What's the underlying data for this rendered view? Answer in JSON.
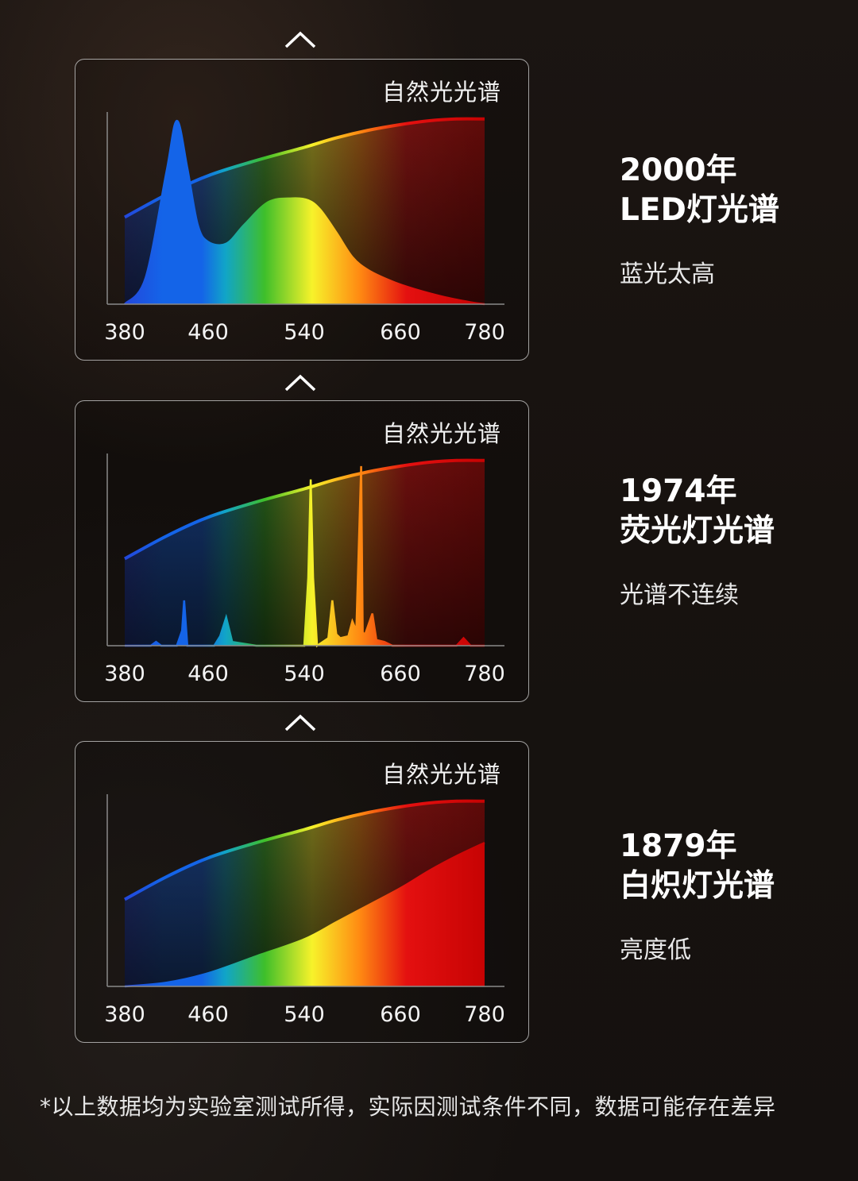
{
  "natural_light_label": "自然光光谱",
  "chart_data": [
    {
      "type": "area",
      "title": "2000年 LED灯光谱",
      "reference_series": "自然光光谱",
      "x_ticks": [
        380,
        460,
        540,
        660,
        780
      ],
      "series": [
        {
          "name": "自然光光谱",
          "x": [
            380,
            420,
            460,
            500,
            540,
            580,
            620,
            660,
            700,
            740,
            780
          ],
          "values": [
            0.46,
            0.58,
            0.68,
            0.76,
            0.83,
            0.88,
            0.92,
            0.95,
            0.97,
            0.98,
            0.98
          ]
        },
        {
          "x": [
            380,
            400,
            420,
            430,
            440,
            450,
            460,
            475,
            490,
            510,
            530,
            545,
            560,
            580,
            600,
            620,
            650,
            680,
            720,
            760,
            780
          ],
          "values": [
            0.0,
            0.14,
            0.7,
            0.97,
            0.72,
            0.42,
            0.33,
            0.32,
            0.42,
            0.54,
            0.56,
            0.55,
            0.5,
            0.38,
            0.25,
            0.18,
            0.12,
            0.08,
            0.04,
            0.01,
            0.0
          ]
        }
      ]
    },
    {
      "type": "area",
      "title": "1974年 荧光灯光谱",
      "reference_series": "自然光光谱",
      "x_ticks": [
        380,
        460,
        540,
        660,
        780
      ],
      "series": [
        {
          "name": "自然光光谱",
          "x": [
            380,
            420,
            460,
            500,
            540,
            580,
            620,
            660,
            700,
            740,
            780
          ],
          "values": [
            0.46,
            0.58,
            0.68,
            0.76,
            0.83,
            0.88,
            0.92,
            0.95,
            0.97,
            0.98,
            0.98
          ]
        },
        {
          "x": [
            380,
            405,
            410,
            415,
            430,
            435,
            437,
            440,
            465,
            470,
            475,
            480,
            500,
            540,
            545,
            548,
            551,
            556,
            570,
            575,
            580,
            585,
            595,
            600,
            605,
            611,
            613,
            616,
            625,
            630,
            640,
            650,
            700,
            740,
            750,
            760,
            780
          ],
          "values": [
            0.0,
            0.0,
            0.02,
            0.0,
            0.0,
            0.08,
            0.24,
            0.0,
            0.0,
            0.05,
            0.15,
            0.02,
            0.0,
            0.0,
            0.36,
            0.88,
            0.36,
            0.0,
            0.04,
            0.24,
            0.06,
            0.04,
            0.05,
            0.13,
            0.08,
            0.95,
            0.07,
            0.06,
            0.17,
            0.03,
            0.02,
            0.0,
            0.0,
            0.0,
            0.04,
            0.0,
            0.0
          ]
        }
      ]
    },
    {
      "type": "area",
      "title": "1879年 白炽灯光谱",
      "reference_series": "自然光光谱",
      "x_ticks": [
        380,
        460,
        540,
        660,
        780
      ],
      "series": [
        {
          "name": "自然光光谱",
          "x": [
            380,
            420,
            460,
            500,
            540,
            580,
            620,
            660,
            700,
            740,
            780
          ],
          "values": [
            0.46,
            0.58,
            0.68,
            0.76,
            0.83,
            0.88,
            0.92,
            0.95,
            0.97,
            0.98,
            0.98
          ]
        },
        {
          "x": [
            380,
            420,
            460,
            500,
            540,
            580,
            620,
            660,
            700,
            740,
            780
          ],
          "values": [
            0.0,
            0.02,
            0.07,
            0.16,
            0.25,
            0.34,
            0.43,
            0.52,
            0.61,
            0.69,
            0.76
          ]
        }
      ]
    }
  ],
  "panels": [
    {
      "year": "2000年",
      "name": "LED灯光谱",
      "desc": "蓝光太高"
    },
    {
      "year": "1974年",
      "name": "荧光灯光谱",
      "desc": "光谱不连续"
    },
    {
      "year": "1879年",
      "name": "白炽灯光谱",
      "desc": "亮度低"
    }
  ],
  "footnote": "*以上数据均为实验室测试所得，实际因测试条件不同，数据可能存在差异",
  "colors": {
    "violet": "#2a3bd6",
    "blue": "#1464e8",
    "cyan": "#11a5c8",
    "green": "#3fbf2a",
    "yellow": "#f7f22a",
    "orange": "#ff8a12",
    "red": "#e41010",
    "dark_red": "#c00000",
    "frame": "#d2d2d2"
  }
}
